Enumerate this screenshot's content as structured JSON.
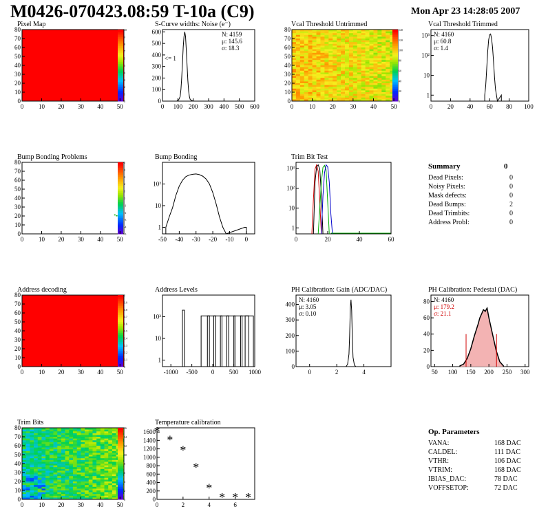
{
  "header": {
    "title": "M0426-070423.08:59 T-10a (C9)",
    "date": "Mon Apr 23 14:28:05 2007"
  },
  "summary": {
    "title": "Summary",
    "total": "0",
    "rows": [
      {
        "label": "Dead Pixels:",
        "value": "0"
      },
      {
        "label": "Noisy Pixels:",
        "value": "0"
      },
      {
        "label": "Mask defects:",
        "value": "0"
      },
      {
        "label": "Dead Bumps:",
        "value": "2"
      },
      {
        "label": "Dead Trimbits:",
        "value": "0"
      },
      {
        "label": "Address Probl:",
        "value": "0"
      }
    ]
  },
  "op_params": {
    "title": "Op. Parameters",
    "rows": [
      {
        "label": "VANA:",
        "value": "168 DAC"
      },
      {
        "label": "CALDEL:",
        "value": "111 DAC"
      },
      {
        "label": "VTHR:",
        "value": "106 DAC"
      },
      {
        "label": "VTRIM:",
        "value": "168 DAC"
      },
      {
        "label": "IBIAS_DAC:",
        "value": "78 DAC"
      },
      {
        "label": "VOFFSETOP:",
        "value": "72 DAC"
      }
    ]
  },
  "chart_data": [
    {
      "id": "pixel-map",
      "type": "heatmap",
      "title": "Pixel Map",
      "xlim": [
        0,
        52
      ],
      "ylim": [
        0,
        80
      ],
      "xticks": [
        "0",
        "10",
        "20",
        "30",
        "40",
        "50"
      ],
      "yticks": [
        "0",
        "10",
        "20",
        "30",
        "40",
        "50",
        "60",
        "70",
        "80"
      ],
      "zticks": [
        "0",
        "1",
        "2",
        "3",
        "4",
        "5",
        "6",
        "7",
        "8",
        "9",
        "10"
      ],
      "zlim": [
        0,
        10
      ],
      "fill_value": 10
    },
    {
      "id": "scurve",
      "type": "line",
      "title": "S-Curve widths: Noise (e⁻)",
      "xlim": [
        0,
        600
      ],
      "ylim": [
        0,
        620
      ],
      "xticks": [
        "0",
        "100",
        "200",
        "300",
        "400",
        "500",
        "600"
      ],
      "yticks": [
        "0",
        "100",
        "200",
        "300",
        "400",
        "500",
        "600"
      ],
      "stats": [
        "N: 4159",
        "μ: 145.6",
        "σ: 18.3"
      ],
      "annotation": "<= 1",
      "x": [
        95,
        105,
        115,
        120,
        125,
        130,
        135,
        140,
        145,
        150,
        155,
        160,
        165,
        170,
        175,
        180,
        190,
        200
      ],
      "y": [
        2,
        10,
        40,
        100,
        200,
        330,
        470,
        560,
        600,
        560,
        440,
        310,
        180,
        90,
        40,
        15,
        5,
        1
      ]
    },
    {
      "id": "vcal-untrimmed",
      "type": "heatmap",
      "title": "Vcal Threshold Untrimmed",
      "xlim": [
        0,
        52
      ],
      "ylim": [
        0,
        80
      ],
      "xticks": [
        "0",
        "10",
        "20",
        "30",
        "40",
        "50"
      ],
      "yticks": [
        "0",
        "10",
        "20",
        "30",
        "40",
        "50",
        "60",
        "70",
        "80"
      ],
      "zticks": [
        "0",
        "20",
        "40",
        "60",
        "80",
        "100",
        "120",
        "140"
      ],
      "zlim": [
        0,
        140
      ]
    },
    {
      "id": "vcal-trimmed",
      "type": "line",
      "title": "Vcal Threshold Trimmed",
      "xlim": [
        0,
        100
      ],
      "log": true,
      "ylim": [
        0.5,
        2000
      ],
      "xticks": [
        "0",
        "20",
        "40",
        "60",
        "80",
        "100"
      ],
      "yticks": [
        "1",
        "10",
        "10²",
        "10³"
      ],
      "stats": [
        "N: 4160",
        "μ: 60.8",
        "σ: 1.4"
      ],
      "x": [
        55,
        56,
        57,
        58,
        59,
        60,
        61,
        62,
        63,
        64,
        65,
        66,
        67,
        68,
        72
      ],
      "y": [
        1,
        3,
        20,
        150,
        600,
        1100,
        1200,
        700,
        250,
        50,
        8,
        2,
        1,
        0,
        1
      ]
    },
    {
      "id": "bump-problems",
      "type": "heatmap",
      "title": "Bump Bonding Problems",
      "xlim": [
        0,
        52
      ],
      "ylim": [
        0,
        80
      ],
      "xticks": [
        "0",
        "10",
        "20",
        "30",
        "40",
        "50"
      ],
      "yticks": [
        "0",
        "10",
        "20",
        "30",
        "40",
        "50",
        "60",
        "70",
        "80"
      ],
      "zticks": [
        "-5",
        "-4",
        "-3",
        "-2",
        "-1",
        "0",
        "1",
        "2",
        "3",
        "4",
        "5"
      ],
      "zlim": [
        -5,
        5
      ],
      "points": [
        {
          "x": 47,
          "y": 21
        },
        {
          "x": 48,
          "y": 20
        }
      ]
    },
    {
      "id": "bump-bonding",
      "type": "line",
      "title": "Bump Bonding",
      "xlim": [
        -50,
        5
      ],
      "log": true,
      "ylim": [
        0.5,
        1000
      ],
      "xticks": [
        "-50",
        "-40",
        "-30",
        "-20",
        "-10",
        "0"
      ],
      "yticks": [
        "1",
        "10",
        "10²"
      ],
      "x": [
        -48,
        -46,
        -44,
        -42,
        -40,
        -38,
        -36,
        -34,
        -32,
        -30,
        -28,
        -26,
        -24,
        -22,
        -20,
        -18,
        -16,
        -14,
        -12,
        -1,
        0
      ],
      "y": [
        1,
        3,
        8,
        30,
        80,
        150,
        220,
        260,
        280,
        290,
        270,
        230,
        170,
        100,
        40,
        12,
        3,
        1,
        0,
        1,
        1
      ]
    },
    {
      "id": "trim-bit-test",
      "type": "line",
      "title": "Trim Bit Test",
      "xlim": [
        0,
        60
      ],
      "log": true,
      "ylim": [
        0.5,
        2000
      ],
      "xticks": [
        "0",
        "20",
        "40",
        "60"
      ],
      "yticks": [
        "1",
        "10",
        "10²",
        "10³"
      ],
      "series": [
        {
          "color": "#d00000",
          "x": [
            10,
            11,
            12,
            13,
            14,
            15,
            16
          ],
          "y": [
            0.5,
            30,
            900,
            1500,
            700,
            20,
            0.5
          ]
        },
        {
          "color": "#000000",
          "x": [
            11,
            12,
            13,
            14,
            15,
            16,
            17
          ],
          "y": [
            0.5,
            200,
            1200,
            1500,
            900,
            50,
            0.5
          ]
        },
        {
          "color": "#00aa00",
          "x": [
            14,
            15,
            16,
            17,
            18,
            19,
            20,
            21
          ],
          "y": [
            0.5,
            10,
            200,
            1100,
            1400,
            800,
            20,
            0.5
          ]
        },
        {
          "color": "#0000cc",
          "x": [
            16,
            17,
            18,
            19,
            20,
            21,
            22,
            23
          ],
          "y": [
            0.5,
            40,
            600,
            1500,
            1200,
            200,
            5,
            0.5
          ]
        }
      ]
    },
    {
      "id": "address-decoding",
      "type": "heatmap",
      "title": "Address decoding",
      "xlim": [
        0,
        52
      ],
      "ylim": [
        0,
        80
      ],
      "xticks": [
        "0",
        "10",
        "20",
        "30",
        "40",
        "50"
      ],
      "yticks": [
        "0",
        "10",
        "20",
        "30",
        "40",
        "50",
        "60",
        "70",
        "80"
      ],
      "zticks": [
        "0",
        "0.1",
        "0.2",
        "0.3",
        "0.4",
        "0.5",
        "0.6",
        "0.7",
        "0.8",
        "0.9",
        "1"
      ],
      "zlim": [
        0,
        1
      ],
      "fill_value": 1
    },
    {
      "id": "address-levels",
      "type": "line",
      "title": "Address Levels",
      "xlim": [
        -1200,
        1000
      ],
      "log": true,
      "ylim": [
        0.5,
        1000
      ],
      "xticks": [
        "-1000",
        "-500",
        "0",
        "500",
        "1000"
      ],
      "yticks": [
        "1",
        "10",
        "10²"
      ],
      "peaks": [
        -700,
        -180,
        -30,
        120,
        280,
        430,
        600,
        760,
        870
      ]
    },
    {
      "id": "ph-gain",
      "type": "line",
      "title": "PH Calibration: Gain (ADC/DAC)",
      "xlim": [
        -1,
        6
      ],
      "ylim": [
        0,
        460
      ],
      "xticks": [
        "0",
        "2",
        "4"
      ],
      "yticks": [
        "0",
        "100",
        "200",
        "300",
        "400"
      ],
      "stats": [
        "N: 4160",
        "μ: 3.05",
        "σ: 0.10"
      ],
      "x": [
        2.7,
        2.8,
        2.9,
        2.95,
        3.0,
        3.05,
        3.1,
        3.15,
        3.2,
        3.3,
        3.4
      ],
      "y": [
        2,
        15,
        80,
        200,
        380,
        430,
        360,
        180,
        60,
        10,
        1
      ]
    },
    {
      "id": "ph-pedestal",
      "type": "line",
      "title": "PH Calibration: Pedestal (DAC)",
      "xlim": [
        40,
        310
      ],
      "ylim": [
        0,
        88
      ],
      "xticks": [
        "50",
        "100",
        "150",
        "200",
        "250",
        "300"
      ],
      "yticks": [
        "0",
        "20",
        "40",
        "60",
        "80"
      ],
      "stats": [
        "N: 4160",
        "μ: 179.2",
        "σ: 21.1"
      ],
      "x": [
        120,
        130,
        140,
        150,
        160,
        170,
        175,
        180,
        185,
        190,
        195,
        200,
        210,
        220,
        230,
        240
      ],
      "y": [
        1,
        3,
        10,
        22,
        38,
        52,
        60,
        65,
        70,
        68,
        72,
        60,
        40,
        20,
        6,
        1
      ],
      "markers": [
        137,
        221
      ]
    },
    {
      "id": "trim-bits",
      "type": "heatmap",
      "title": "Trim Bits",
      "xlim": [
        0,
        52
      ],
      "ylim": [
        0,
        80
      ],
      "xticks": [
        "0",
        "10",
        "20",
        "30",
        "40",
        "50"
      ],
      "yticks": [
        "0",
        "10",
        "20",
        "30",
        "40",
        "50",
        "60",
        "70",
        "80"
      ],
      "zticks": [
        "0",
        "2",
        "4",
        "6",
        "8",
        "10",
        "12",
        "14",
        "16"
      ],
      "zlim": [
        0,
        16
      ]
    },
    {
      "id": "temperature-calibration",
      "type": "scatter",
      "title": "Temperature calibration",
      "xlim": [
        0,
        7.5
      ],
      "ylim": [
        0,
        1700
      ],
      "xticks": [
        "0",
        "2",
        "4",
        "6"
      ],
      "yticks": [
        "0",
        "200",
        "400",
        "600",
        "800",
        "1000",
        "1200",
        "1400",
        "1600"
      ],
      "x": [
        0,
        1,
        2,
        3,
        4,
        5,
        6,
        7
      ],
      "y": [
        1600,
        1400,
        1150,
        740,
        250,
        30,
        30,
        30
      ]
    }
  ]
}
